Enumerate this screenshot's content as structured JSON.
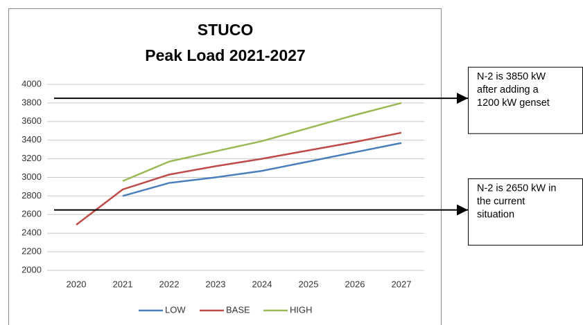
{
  "chart_data": {
    "type": "line",
    "title": "STUCO",
    "subtitle": "Peak Load 2021-2027",
    "categories": [
      "2020",
      "2021",
      "2022",
      "2023",
      "2024",
      "2025",
      "2026",
      "2027"
    ],
    "series": [
      {
        "name": "LOW",
        "color": "#4a7ebb",
        "values": [
          null,
          2800,
          2940,
          3000,
          3070,
          3170,
          3270,
          3370
        ]
      },
      {
        "name": "BASE",
        "color": "#be4b48",
        "values": [
          2490,
          2870,
          3030,
          3120,
          3200,
          3290,
          3380,
          3480
        ]
      },
      {
        "name": "HIGH",
        "color": "#98b954",
        "values": [
          null,
          2960,
          3170,
          3280,
          3390,
          3530,
          3670,
          3800
        ]
      }
    ],
    "ylim": [
      2000,
      4000
    ],
    "yticks": [
      2000,
      2200,
      2400,
      2600,
      2800,
      3000,
      3200,
      3400,
      3600,
      3800,
      4000
    ],
    "grid": true,
    "legend": "bottom",
    "annotations": [
      {
        "value": 3850,
        "lines": [
          "N-2 is 3850 kW",
          "after adding a",
          "1200 kW genset"
        ]
      },
      {
        "value": 2650,
        "lines": [
          "N-2 is 2650 kW in",
          "the current",
          "situation"
        ]
      }
    ]
  }
}
